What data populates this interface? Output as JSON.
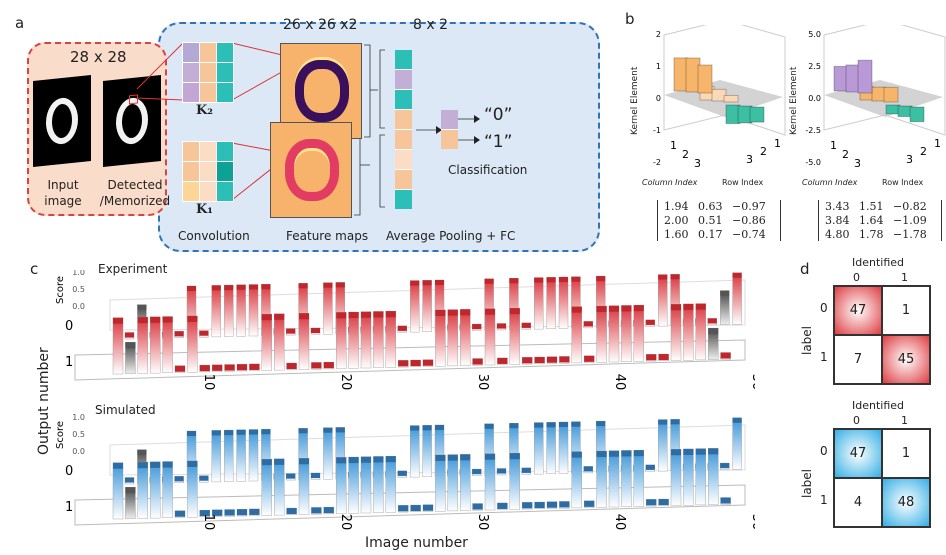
{
  "panel_a": {
    "label": "a",
    "input_size": "28 x 28",
    "input_image_label": "Input image",
    "detected_label": "Detected /Memorized",
    "kernel2": "K₂",
    "kernel1": "K₁",
    "kernel2_colors": [
      "#b3a9d4",
      "#f7c59a",
      "#2bbfb8",
      "#c3aed6",
      "#f7c59a",
      "#2bbfb8",
      "#c3a6d3",
      "#f7c59a",
      "#2bbfb8"
    ],
    "kernel1_colors": [
      "#f7c59a",
      "#fbdcc4",
      "#2bbfb8",
      "#f7c59a",
      "#fbdcc4",
      "#0ea195",
      "#fdd596",
      "#fbdcc4",
      "#2bbfb8"
    ],
    "feature_map_size": "26 x 26 x2",
    "pool_size": "8 x 2",
    "pool_colors": [
      "#2bbfb8",
      "#c3aed6",
      "#2bbfb8",
      "#f7c59a",
      "#f7c59a",
      "#fbdcc4",
      "#f7c59a",
      "#2bbfb8"
    ],
    "out_colors": [
      "#c3aed6",
      "#f7c59a"
    ],
    "out0": "“0”",
    "out1": "“1”",
    "classification": "Classification",
    "convolution": "Convolution",
    "feature_maps": "Feature maps",
    "pooling": "Average Pooling + FC"
  },
  "panel_b": {
    "label": "b",
    "charts": [
      {
        "zlabel": "Kernel Element",
        "zticks": [
          "2",
          "1",
          "0",
          "-1",
          "-2"
        ],
        "xlabel": "Column Index",
        "ylabel": "Row Index",
        "matrix": [
          [
            "1.94",
            "0.63",
            "−0.97"
          ],
          [
            "2.00",
            "0.51",
            "−0.86"
          ],
          [
            "1.60",
            "0.17",
            "−0.74"
          ]
        ]
      },
      {
        "zlabel": "Kernel Element",
        "zticks": [
          "5.0",
          "2.5",
          "0.0",
          "-2.5",
          "-5.0"
        ],
        "xlabel": "Column Index",
        "ylabel": "Row Index",
        "matrix": [
          [
            "3.43",
            "1.51",
            "−0.82"
          ],
          [
            "3.84",
            "1.64",
            "−1.09"
          ],
          [
            "4.80",
            "1.78",
            "−1.78"
          ]
        ]
      }
    ],
    "index_ticks": [
      "1",
      "2",
      "3"
    ]
  },
  "panel_c": {
    "label": "c",
    "ylabel": "Output number",
    "xlabel": "Image number",
    "score_label": "Score",
    "score_ticks": [
      "1.0",
      "0.5",
      "0.0"
    ],
    "row_ticks": [
      "0",
      "1"
    ],
    "x_ticks": [
      "10",
      "20",
      "30",
      "40",
      "50"
    ],
    "colors": {
      "experiment": "#c0272d",
      "simulated": "#2e6da4",
      "misclassified": "#555555"
    }
  },
  "chart_data": {
    "type": "bar3d",
    "x": "image number 1-50",
    "xlim": [
      1,
      50
    ],
    "zlim": [
      0,
      1
    ],
    "series": [
      {
        "name": "Experiment",
        "predicted_output": [
          0,
          -1,
          0,
          0,
          0,
          1,
          0,
          1,
          1,
          1,
          1,
          1,
          0,
          0,
          1,
          0,
          1,
          1,
          0,
          0,
          0,
          0,
          0,
          1,
          1,
          1,
          0,
          0,
          0,
          1,
          0,
          1,
          0,
          1,
          1,
          1,
          1,
          0,
          1,
          0,
          0,
          0,
          0,
          1,
          1,
          0,
          0,
          0,
          -1,
          1
        ]
      },
      {
        "name": "Simulated",
        "predicted_output": [
          0,
          -1,
          0,
          0,
          0,
          1,
          0,
          1,
          1,
          1,
          1,
          1,
          0,
          0,
          1,
          0,
          1,
          1,
          0,
          0,
          0,
          0,
          0,
          1,
          1,
          1,
          0,
          0,
          0,
          1,
          0,
          1,
          0,
          1,
          1,
          1,
          1,
          0,
          1,
          0,
          0,
          0,
          0,
          1,
          1,
          0,
          0,
          0,
          0,
          1
        ]
      }
    ]
  },
  "panel_d": {
    "label": "d",
    "col_title": "Identified",
    "col_ticks": [
      "0",
      "1"
    ],
    "row_title": "label",
    "row_ticks": [
      "0",
      "1"
    ],
    "experiment": [
      [
        "47",
        "1"
      ],
      [
        "7",
        "45"
      ]
    ],
    "simulated": [
      [
        "47",
        "1"
      ],
      [
        "4",
        "48"
      ]
    ],
    "colors": {
      "experiment": "#e0474c",
      "simulated": "#3fb3e6"
    }
  }
}
